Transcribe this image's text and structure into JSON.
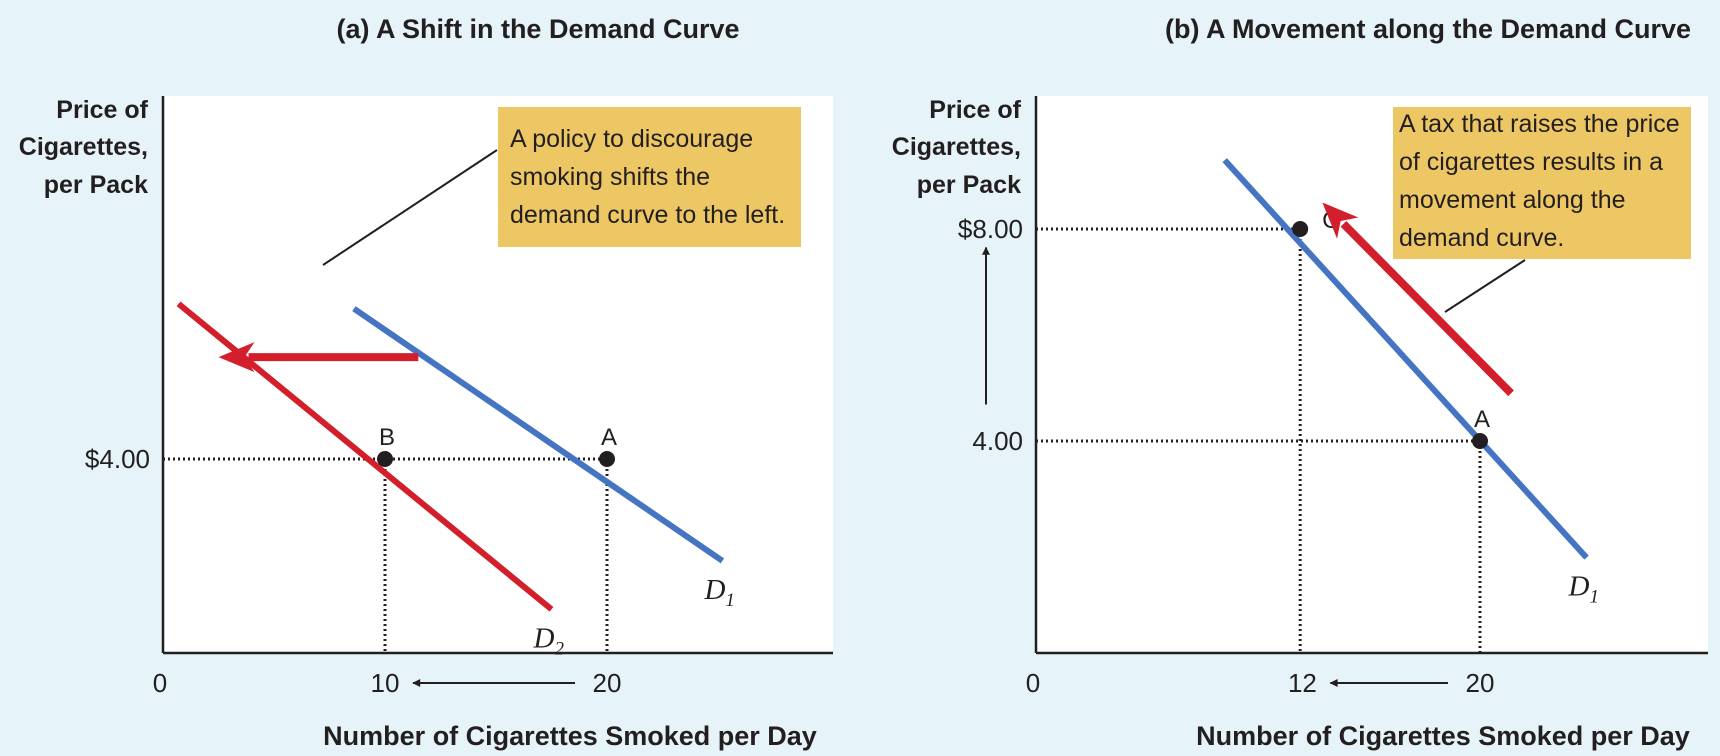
{
  "colors": {
    "background": "#e6f3f8",
    "plot_background": "#ffffff",
    "demand_blue": "#4575c2",
    "demand_red": "#d21f2b",
    "callout_fill": "#ecc764",
    "text": "#231f20"
  },
  "chart_data": [
    {
      "type": "line",
      "title": "(a) A Shift in the Demand Curve",
      "xlabel": "Number of Cigarettes Smoked per Day",
      "ylabel_lines": [
        "Price of",
        "Cigarettes,",
        "per Pack"
      ],
      "origin_label": "0",
      "x_ticks": [
        {
          "value": 10,
          "label": "10"
        },
        {
          "value": 20,
          "label": "20"
        }
      ],
      "y_ticks": [
        {
          "value": 4,
          "label": "$4.00"
        }
      ],
      "series": [
        {
          "name": "D",
          "subscript": "1",
          "color": "#4575c2",
          "points": [
            [
              8.6,
              7.1
            ],
            [
              25.2,
              1.9
            ]
          ]
        },
        {
          "name": "D",
          "subscript": "2",
          "color": "#d21f2b",
          "points": [
            [
              0.7,
              7.2
            ],
            [
              17.5,
              0.9
            ]
          ]
        }
      ],
      "points": [
        {
          "label": "A",
          "x": 20,
          "y": 4
        },
        {
          "label": "B",
          "x": 10,
          "y": 4
        }
      ],
      "shift_arrow": {
        "from": [
          11.5,
          6.1
        ],
        "to": [
          2.5,
          6.1
        ],
        "direction": "left"
      },
      "axis_arrow": {
        "axis": "x",
        "from": 20,
        "to": 10
      },
      "annotation_lines": [
        "A policy to discourage",
        "smoking shifts the",
        "demand curve to the left."
      ]
    },
    {
      "type": "line",
      "title": "(b) A Movement along the Demand Curve",
      "xlabel": "Number of Cigarettes Smoked per Day",
      "ylabel_lines": [
        "Price of",
        "Cigarettes,",
        "per Pack"
      ],
      "origin_label": "0",
      "x_ticks": [
        {
          "value": 12,
          "label": "12"
        },
        {
          "value": 20,
          "label": "20"
        }
      ],
      "y_ticks": [
        {
          "value": 4,
          "label": "4.00"
        },
        {
          "value": 8,
          "label": "$8.00"
        }
      ],
      "series": [
        {
          "name": "D",
          "subscript": "1",
          "color": "#4575c2",
          "points": [
            [
              8.5,
              9.3
            ],
            [
              24.8,
              1.8
            ]
          ]
        }
      ],
      "points": [
        {
          "label": "C",
          "x": 11.9,
          "y": 8
        },
        {
          "label": "A",
          "x": 20,
          "y": 4
        }
      ],
      "movement_arrow": {
        "from": [
          21.4,
          4.9
        ],
        "to": [
          12.9,
          8.5
        ],
        "direction": "up-left"
      },
      "axis_arrows": [
        {
          "axis": "x",
          "from": 20,
          "to": 12
        },
        {
          "axis": "y",
          "from": 4.5,
          "to": 7.5
        }
      ],
      "annotation_lines": [
        "A tax that raises the price",
        "of cigarettes results in a",
        "movement along the",
        "demand curve."
      ]
    }
  ]
}
